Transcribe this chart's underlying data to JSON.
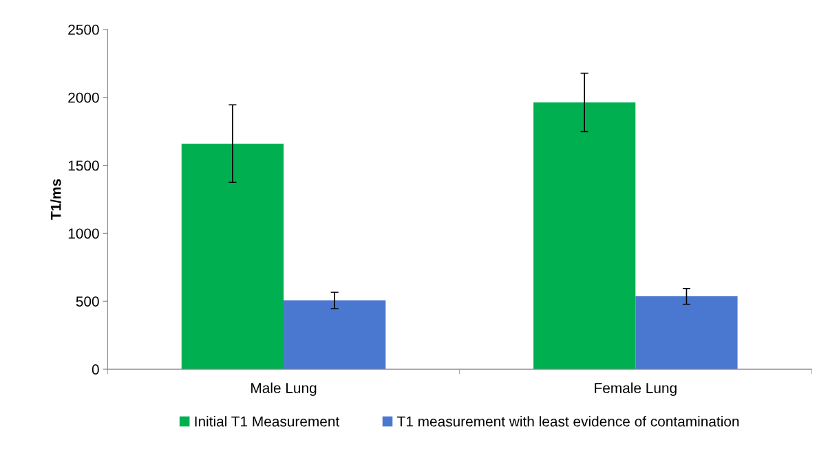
{
  "chart_data": {
    "type": "bar",
    "ylabel": "T1/ms",
    "categories": [
      "Male Lung",
      "Female Lung"
    ],
    "series": [
      {
        "name": "Initial T1 Measurement",
        "color": "#00b050",
        "values": [
          1660,
          1963
        ],
        "errors": [
          285,
          215
        ]
      },
      {
        "name": "T1 measurement with least evidence of contamination",
        "color": "#4a78d0",
        "values": [
          506,
          536
        ],
        "errors": [
          60,
          58
        ]
      }
    ],
    "ylim": [
      0,
      2500
    ],
    "yticks": [
      0,
      500,
      1000,
      1500,
      2000,
      2500
    ],
    "grid": false,
    "legend": "bottom"
  }
}
